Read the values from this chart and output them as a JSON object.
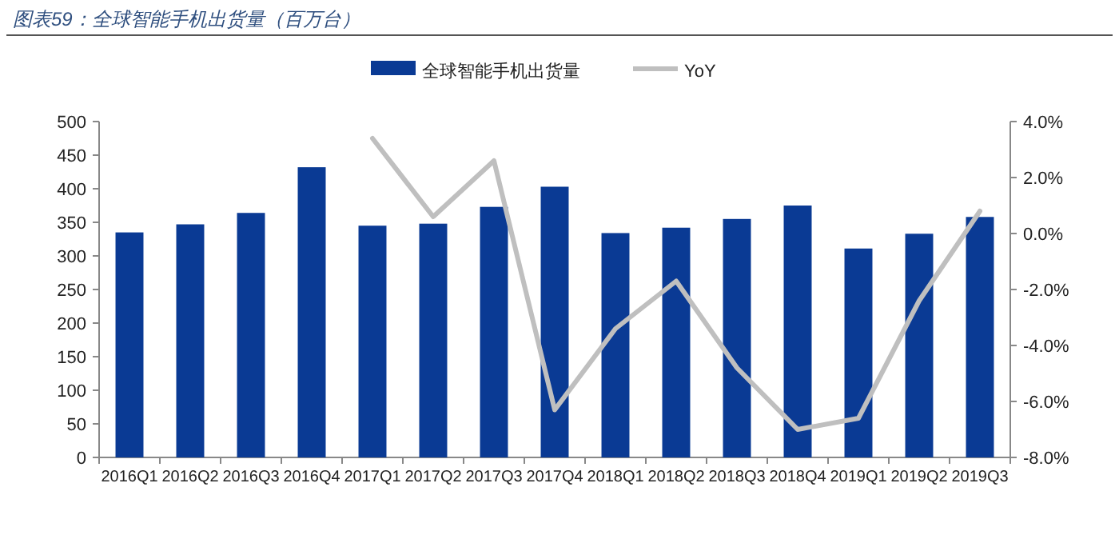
{
  "chart_data": {
    "type": "bar",
    "title": "图表59：全球智能手机出货量（百万台）",
    "categories": [
      "2016Q1",
      "2016Q2",
      "2016Q3",
      "2016Q4",
      "2017Q1",
      "2017Q2",
      "2017Q3",
      "2017Q4",
      "2018Q1",
      "2018Q2",
      "2018Q3",
      "2018Q4",
      "2019Q1",
      "2019Q2",
      "2019Q3"
    ],
    "series": [
      {
        "name": "全球智能手机出货量",
        "color": "#0a3a94",
        "values": [
          335,
          347,
          364,
          432,
          345,
          348,
          373,
          403,
          334,
          342,
          355,
          375,
          311,
          333,
          358
        ]
      },
      {
        "name": "YoY",
        "type": "line",
        "axis": "y2",
        "color": "#bfbfbf",
        "values": [
          null,
          null,
          null,
          null,
          3.4,
          0.6,
          2.6,
          -6.3,
          -3.4,
          -1.7,
          -4.8,
          -7.0,
          -6.6,
          -2.4,
          0.8
        ]
      }
    ],
    "ylim": [
      0,
      500
    ],
    "yticks": [
      0,
      50,
      100,
      150,
      200,
      250,
      300,
      350,
      400,
      450,
      500
    ],
    "y2lim": [
      -8,
      4
    ],
    "y2ticks": [
      {
        "value": -8,
        "label": "-8.0%"
      },
      {
        "value": -6,
        "label": "-6.0%"
      },
      {
        "value": -4,
        "label": "-4.0%"
      },
      {
        "value": -2,
        "label": "-2.0%"
      },
      {
        "value": 0,
        "label": "0.0%"
      },
      {
        "value": 2,
        "label": "2.0%"
      },
      {
        "value": 4,
        "label": "4.0%"
      }
    ],
    "legend": "top",
    "grid": false,
    "marker": "none",
    "line_style": "solid"
  }
}
